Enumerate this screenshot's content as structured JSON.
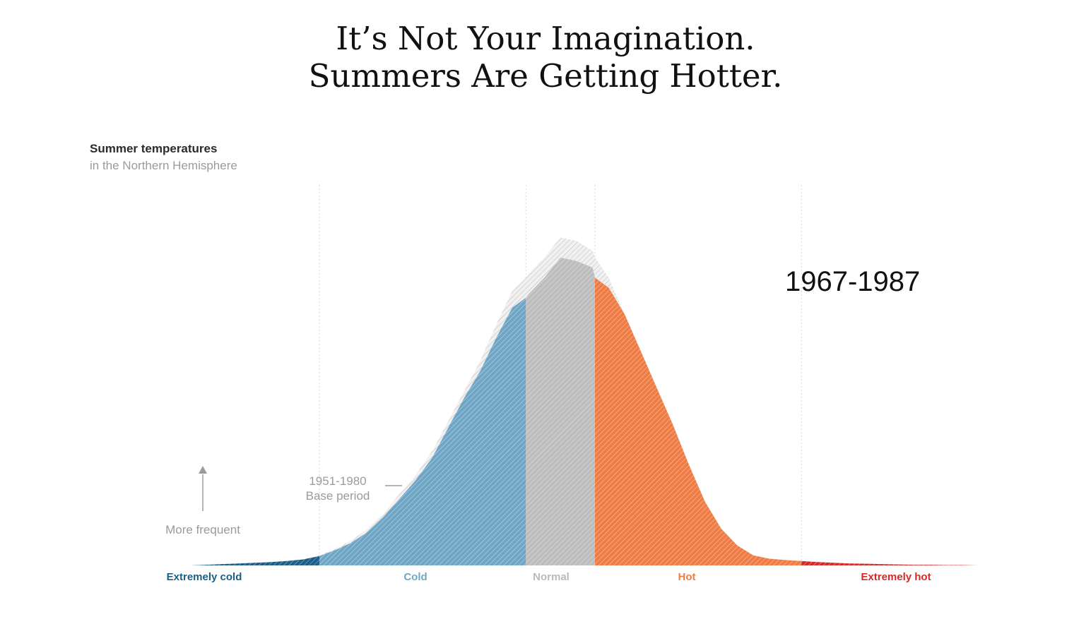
{
  "headline": {
    "line1": "It’s Not Your Imagination.",
    "line2": "Summers Are Getting Hotter."
  },
  "chart_data": {
    "type": "area",
    "title": "Summer temperatures",
    "subtitle": "in the Northern Hemisphere",
    "period_label": "1967-1987",
    "base_period_label": [
      "1951-1980",
      "Base period"
    ],
    "y_axis_label": "More frequent",
    "x": [
      -4.6,
      -4.4,
      -4.2,
      -4.0,
      -3.8,
      -3.6,
      -3.4,
      -3.2,
      -3.0,
      -2.8,
      -2.6,
      -2.4,
      -2.2,
      -2.0,
      -1.8,
      -1.6,
      -1.4,
      -1.2,
      -1.0,
      -0.8,
      -0.6,
      -0.43,
      -0.4,
      -0.2,
      0.0,
      0.2,
      0.4,
      0.43,
      0.6,
      0.8,
      1.0,
      1.2,
      1.4,
      1.6,
      1.8,
      2.0,
      2.2,
      2.4,
      2.6,
      2.8,
      3.0,
      3.2,
      3.4,
      3.6,
      3.8,
      4.0,
      4.2,
      4.4,
      4.6,
      4.8,
      5.0,
      5.2,
      5.4,
      5.6
    ],
    "series": [
      {
        "name": "1951-1980",
        "values": [
          0,
          0.002,
          0.004,
          0.006,
          0.008,
          0.01,
          0.013,
          0.018,
          0.03,
          0.05,
          0.075,
          0.11,
          0.155,
          0.215,
          0.27,
          0.34,
          0.43,
          0.52,
          0.61,
          0.72,
          0.82,
          0.86,
          0.87,
          0.92,
          0.98,
          0.97,
          0.94,
          0.92,
          0.86,
          0.75,
          0.62,
          0.5,
          0.38,
          0.27,
          0.17,
          0.1,
          0.05,
          0.025,
          0.012,
          0.007,
          0.005,
          0.004,
          0.003,
          0.002,
          0.002,
          0.001,
          0.001,
          0.0,
          0.0,
          0.0,
          0.0,
          0.0,
          0.0,
          0.0
        ]
      },
      {
        "name": "1967-1987",
        "values": [
          0,
          0.002,
          0.004,
          0.006,
          0.008,
          0.01,
          0.013,
          0.018,
          0.028,
          0.046,
          0.068,
          0.1,
          0.145,
          0.2,
          0.255,
          0.32,
          0.41,
          0.5,
          0.58,
          0.68,
          0.77,
          0.8,
          0.81,
          0.86,
          0.92,
          0.91,
          0.89,
          0.86,
          0.83,
          0.75,
          0.64,
          0.53,
          0.42,
          0.3,
          0.19,
          0.11,
          0.06,
          0.03,
          0.02,
          0.016,
          0.013,
          0.01,
          0.008,
          0.006,
          0.005,
          0.004,
          0.003,
          0.002,
          0.002,
          0.001,
          0.001,
          0.0,
          0.0,
          0.0
        ]
      }
    ],
    "bands": [
      {
        "label": "Extremely cold",
        "from": -4.6,
        "to": -3.0,
        "color": "#1b5e87"
      },
      {
        "label": "Cold",
        "from": -3.0,
        "to": -0.43,
        "color": "#6fa6c5"
      },
      {
        "label": "Normal",
        "from": -0.43,
        "to": 0.43,
        "color": "#bdbdbd"
      },
      {
        "label": "Hot",
        "from": 0.43,
        "to": 3.0,
        "color": "#ef7c44"
      },
      {
        "label": "Extremely hot",
        "from": 3.0,
        "to": 5.6,
        "color": "#d42a2a"
      }
    ],
    "dividers": [
      -3.0,
      -0.43,
      0.43,
      3.0
    ],
    "xlim": [
      -4.6,
      5.6
    ],
    "ylim": [
      0,
      1.0
    ],
    "grid": false,
    "legend": "bottom"
  }
}
